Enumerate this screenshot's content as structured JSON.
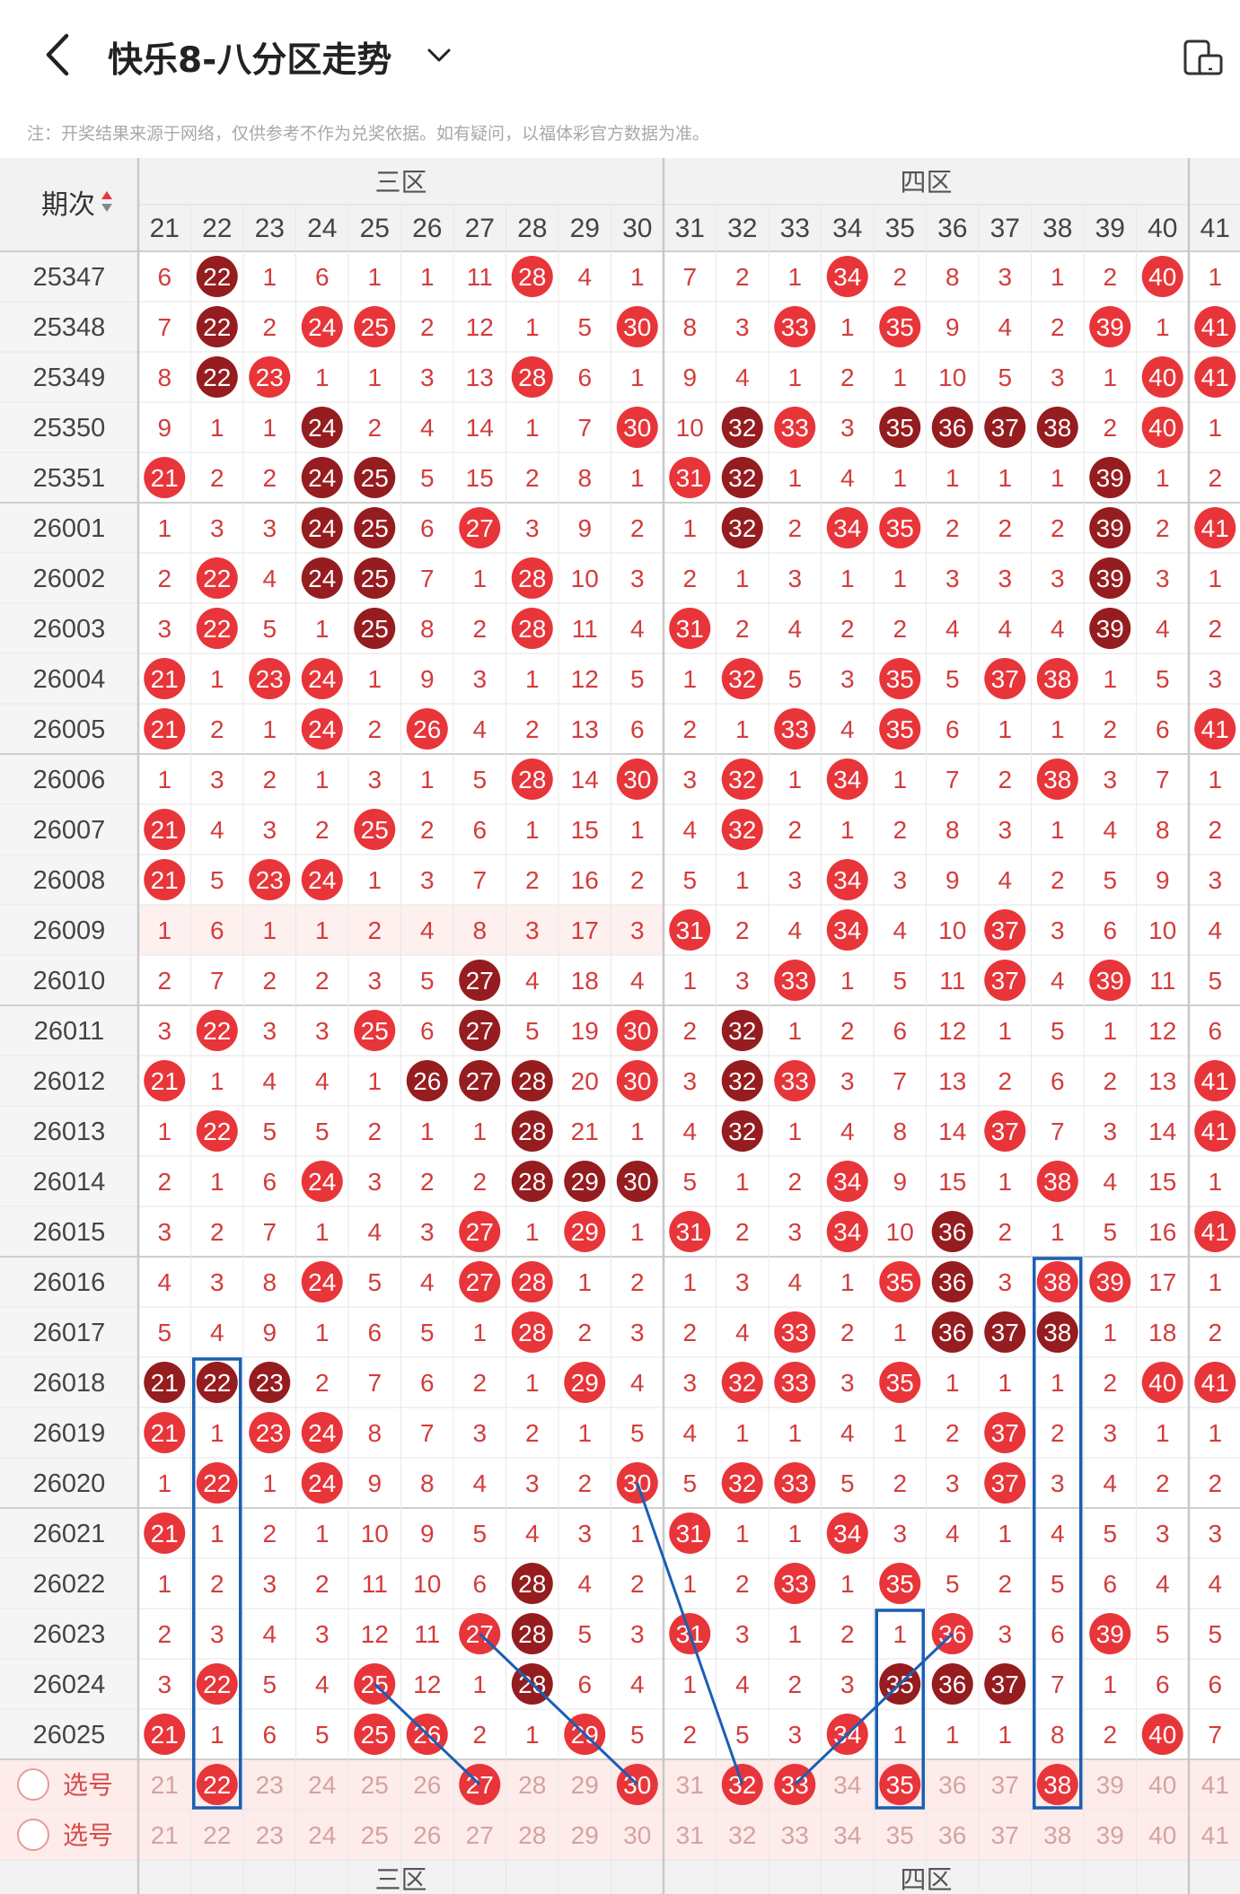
{
  "header": {
    "title": "快乐8-八分区走势",
    "back_icon": "chevron-left-icon",
    "dropdown_icon": "chevron-down-icon",
    "device_icon": "device-toggle-icon"
  },
  "note": "注：开奖结果来源于网络，仅供参考不作为兑奖依据。如有疑问，以福体彩官方数据为准。",
  "table": {
    "period_header": "期次",
    "zones": [
      {
        "label": "三区",
        "from": 21,
        "to": 30
      },
      {
        "label": "四区",
        "from": 31,
        "to": 40
      }
    ],
    "columns": [
      "21",
      "22",
      "23",
      "24",
      "25",
      "26",
      "27",
      "28",
      "29",
      "30",
      "31",
      "32",
      "33",
      "34",
      "35",
      "36",
      "37",
      "38",
      "39",
      "40",
      "41"
    ],
    "rows": [
      {
        "period": "25347",
        "cells": [
          "6",
          "22",
          "1",
          "6",
          "1",
          "1",
          "11",
          "28",
          "4",
          "1",
          "7",
          "2",
          "1",
          "34",
          "2",
          "8",
          "3",
          "1",
          "2",
          "40",
          "1"
        ],
        "dark": [
          22
        ]
      },
      {
        "period": "25348",
        "cells": [
          "7",
          "22",
          "2",
          "24",
          "25",
          "2",
          "12",
          "1",
          "5",
          "30",
          "8",
          "3",
          "33",
          "1",
          "35",
          "9",
          "4",
          "2",
          "39",
          "1",
          "41"
        ],
        "dark": [
          22
        ]
      },
      {
        "period": "25349",
        "cells": [
          "8",
          "22",
          "23",
          "1",
          "1",
          "3",
          "13",
          "28",
          "6",
          "1",
          "9",
          "4",
          "1",
          "2",
          "1",
          "10",
          "5",
          "3",
          "1",
          "40",
          "41"
        ],
        "dark": [
          22
        ]
      },
      {
        "period": "25350",
        "cells": [
          "9",
          "1",
          "1",
          "24",
          "2",
          "4",
          "14",
          "1",
          "7",
          "30",
          "10",
          "32",
          "33",
          "3",
          "35",
          "36",
          "37",
          "38",
          "2",
          "40",
          "1"
        ],
        "dark": [
          24,
          32,
          35,
          36,
          37,
          38
        ]
      },
      {
        "period": "25351",
        "cells": [
          "21",
          "2",
          "2",
          "24",
          "25",
          "5",
          "15",
          "2",
          "8",
          "1",
          "31",
          "32",
          "1",
          "4",
          "1",
          "1",
          "1",
          "1",
          "39",
          "1",
          "2"
        ],
        "dark": [
          24,
          25,
          32,
          39
        ]
      },
      {
        "period": "26001",
        "cells": [
          "1",
          "3",
          "3",
          "24",
          "25",
          "6",
          "27",
          "3",
          "9",
          "2",
          "1",
          "32",
          "2",
          "34",
          "35",
          "2",
          "2",
          "2",
          "39",
          "2",
          "41"
        ],
        "dark": [
          24,
          25,
          32,
          39
        ]
      },
      {
        "period": "26002",
        "cells": [
          "2",
          "22",
          "4",
          "24",
          "25",
          "7",
          "1",
          "28",
          "10",
          "3",
          "2",
          "1",
          "3",
          "1",
          "1",
          "3",
          "3",
          "3",
          "39",
          "3",
          "1"
        ],
        "dark": [
          24,
          25,
          39
        ]
      },
      {
        "period": "26003",
        "cells": [
          "3",
          "22",
          "5",
          "1",
          "25",
          "8",
          "2",
          "28",
          "11",
          "4",
          "31",
          "2",
          "4",
          "2",
          "2",
          "4",
          "4",
          "4",
          "39",
          "4",
          "2"
        ],
        "dark": [
          25,
          39
        ]
      },
      {
        "period": "26004",
        "cells": [
          "21",
          "1",
          "23",
          "24",
          "1",
          "9",
          "3",
          "1",
          "12",
          "5",
          "1",
          "32",
          "5",
          "3",
          "35",
          "5",
          "37",
          "38",
          "1",
          "5",
          "3"
        ],
        "dark": []
      },
      {
        "period": "26005",
        "cells": [
          "21",
          "2",
          "1",
          "24",
          "2",
          "26",
          "4",
          "2",
          "13",
          "6",
          "2",
          "1",
          "33",
          "4",
          "35",
          "6",
          "1",
          "1",
          "2",
          "6",
          "41"
        ],
        "dark": []
      },
      {
        "period": "26006",
        "cells": [
          "1",
          "3",
          "2",
          "1",
          "3",
          "1",
          "5",
          "28",
          "14",
          "30",
          "3",
          "32",
          "1",
          "34",
          "1",
          "7",
          "2",
          "38",
          "3",
          "7",
          "1"
        ],
        "dark": []
      },
      {
        "period": "26007",
        "cells": [
          "21",
          "4",
          "3",
          "2",
          "25",
          "2",
          "6",
          "1",
          "15",
          "1",
          "4",
          "32",
          "2",
          "1",
          "2",
          "8",
          "3",
          "1",
          "4",
          "8",
          "2"
        ],
        "dark": []
      },
      {
        "period": "26008",
        "cells": [
          "21",
          "5",
          "23",
          "24",
          "1",
          "3",
          "7",
          "2",
          "16",
          "2",
          "5",
          "1",
          "3",
          "34",
          "3",
          "9",
          "4",
          "2",
          "5",
          "9",
          "3"
        ],
        "dark": []
      },
      {
        "period": "26009",
        "cells": [
          "1",
          "6",
          "1",
          "1",
          "2",
          "4",
          "8",
          "3",
          "17",
          "3",
          "31",
          "2",
          "4",
          "34",
          "4",
          "10",
          "37",
          "3",
          "6",
          "10",
          "4"
        ],
        "dark": []
      },
      {
        "period": "26010",
        "cells": [
          "2",
          "7",
          "2",
          "2",
          "3",
          "5",
          "27",
          "4",
          "18",
          "4",
          "1",
          "3",
          "33",
          "1",
          "5",
          "11",
          "37",
          "4",
          "39",
          "11",
          "5"
        ],
        "dark": [
          27
        ]
      },
      {
        "period": "26011",
        "cells": [
          "3",
          "22",
          "3",
          "3",
          "25",
          "6",
          "27",
          "5",
          "19",
          "30",
          "2",
          "32",
          "1",
          "2",
          "6",
          "12",
          "1",
          "5",
          "1",
          "12",
          "6"
        ],
        "dark": [
          27,
          32
        ]
      },
      {
        "period": "26012",
        "cells": [
          "21",
          "1",
          "4",
          "4",
          "1",
          "26",
          "27",
          "28",
          "20",
          "30",
          "3",
          "32",
          "33",
          "3",
          "7",
          "13",
          "2",
          "6",
          "2",
          "13",
          "41"
        ],
        "dark": [
          26,
          27,
          28,
          32
        ]
      },
      {
        "period": "26013",
        "cells": [
          "1",
          "22",
          "5",
          "5",
          "2",
          "1",
          "1",
          "28",
          "21",
          "1",
          "4",
          "32",
          "1",
          "4",
          "8",
          "14",
          "37",
          "7",
          "3",
          "14",
          "41"
        ],
        "dark": [
          28,
          32
        ]
      },
      {
        "period": "26014",
        "cells": [
          "2",
          "1",
          "6",
          "24",
          "3",
          "2",
          "2",
          "28",
          "29",
          "30",
          "5",
          "1",
          "2",
          "34",
          "9",
          "15",
          "1",
          "38",
          "4",
          "15",
          "1"
        ],
        "dark": [
          28,
          29,
          30
        ]
      },
      {
        "period": "26015",
        "cells": [
          "3",
          "2",
          "7",
          "1",
          "4",
          "3",
          "27",
          "1",
          "29",
          "1",
          "31",
          "2",
          "3",
          "34",
          "10",
          "36",
          "2",
          "1",
          "5",
          "16",
          "41"
        ],
        "dark": [
          36
        ]
      },
      {
        "period": "26016",
        "cells": [
          "4",
          "3",
          "8",
          "24",
          "5",
          "4",
          "27",
          "28",
          "1",
          "2",
          "1",
          "3",
          "4",
          "1",
          "35",
          "36",
          "3",
          "38",
          "39",
          "17",
          "1"
        ],
        "dark": [
          36
        ]
      },
      {
        "period": "26017",
        "cells": [
          "5",
          "4",
          "9",
          "1",
          "6",
          "5",
          "1",
          "28",
          "2",
          "3",
          "2",
          "4",
          "33",
          "2",
          "1",
          "36",
          "37",
          "38",
          "1",
          "18",
          "2"
        ],
        "dark": [
          36,
          37,
          38
        ]
      },
      {
        "period": "26018",
        "cells": [
          "21",
          "22",
          "23",
          "2",
          "7",
          "6",
          "2",
          "1",
          "29",
          "4",
          "3",
          "32",
          "33",
          "3",
          "35",
          "1",
          "1",
          "1",
          "2",
          "40",
          "41"
        ],
        "dark": [
          21,
          22,
          23
        ]
      },
      {
        "period": "26019",
        "cells": [
          "21",
          "1",
          "23",
          "24",
          "8",
          "7",
          "3",
          "2",
          "1",
          "5",
          "4",
          "1",
          "1",
          "4",
          "1",
          "2",
          "37",
          "2",
          "3",
          "1",
          "1"
        ],
        "dark": []
      },
      {
        "period": "26020",
        "cells": [
          "1",
          "22",
          "1",
          "24",
          "9",
          "8",
          "4",
          "3",
          "2",
          "30",
          "5",
          "32",
          "33",
          "5",
          "2",
          "3",
          "37",
          "3",
          "4",
          "2",
          "2"
        ],
        "dark": []
      },
      {
        "period": "26021",
        "cells": [
          "21",
          "1",
          "2",
          "1",
          "10",
          "9",
          "5",
          "4",
          "3",
          "1",
          "31",
          "1",
          "1",
          "34",
          "3",
          "4",
          "1",
          "4",
          "5",
          "3",
          "3"
        ],
        "dark": []
      },
      {
        "period": "26022",
        "cells": [
          "1",
          "2",
          "3",
          "2",
          "11",
          "10",
          "6",
          "28",
          "4",
          "2",
          "1",
          "2",
          "33",
          "1",
          "35",
          "5",
          "2",
          "5",
          "6",
          "4",
          "4"
        ],
        "dark": [
          28
        ]
      },
      {
        "period": "26023",
        "cells": [
          "2",
          "3",
          "4",
          "3",
          "12",
          "11",
          "27",
          "28",
          "5",
          "3",
          "31",
          "3",
          "1",
          "2",
          "1",
          "36",
          "3",
          "6",
          "39",
          "5",
          "5"
        ],
        "dark": [
          28
        ]
      },
      {
        "period": "26024",
        "cells": [
          "3",
          "22",
          "5",
          "4",
          "25",
          "12",
          "1",
          "28",
          "6",
          "4",
          "1",
          "4",
          "2",
          "3",
          "35",
          "36",
          "37",
          "7",
          "1",
          "6",
          "6"
        ],
        "dark": [
          28,
          35,
          36,
          37
        ]
      },
      {
        "period": "26025",
        "cells": [
          "21",
          "1",
          "6",
          "5",
          "25",
          "26",
          "2",
          "1",
          "29",
          "5",
          "2",
          "5",
          "3",
          "34",
          "1",
          "1",
          "1",
          "8",
          "2",
          "40",
          "7"
        ],
        "dark": []
      }
    ],
    "select_label": "选号",
    "select_rows": [
      {
        "selected": [
          22,
          27,
          30,
          32,
          33,
          35,
          38
        ]
      },
      {
        "selected": []
      }
    ]
  },
  "colors": {
    "ball_red": "#e8353a",
    "ball_dark": "#951c1f",
    "miss_text": "#d43c3c",
    "select_bg": "#fdecea",
    "marker_blue": "#1a5fb4"
  }
}
